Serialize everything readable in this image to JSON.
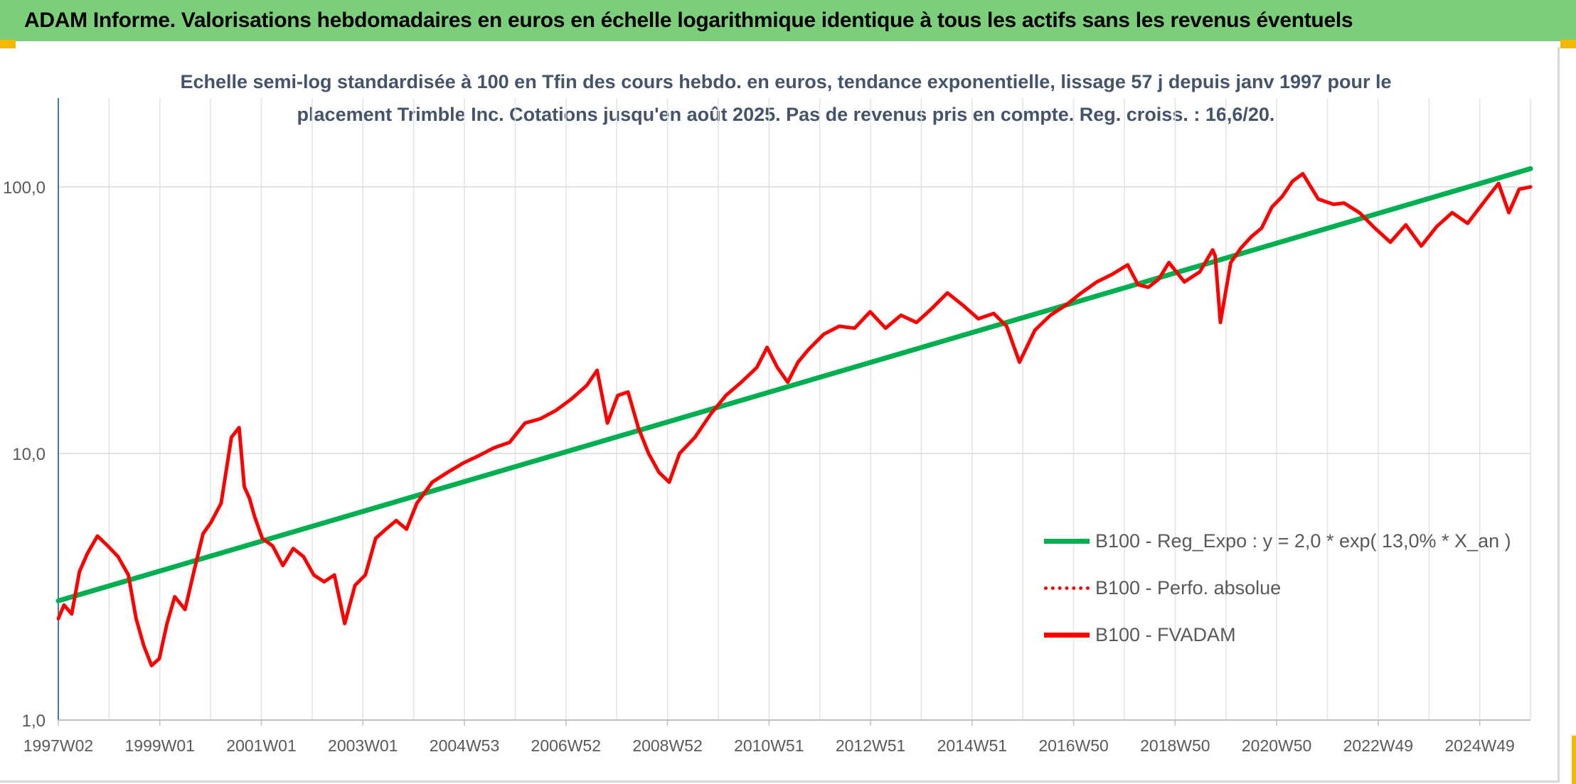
{
  "banner": {
    "title": "ADAM Informe. Valorisations hebdomadaires en euros en échelle logarithmique identique à tous les actifs sans les revenus éventuels"
  },
  "colors": {
    "banner": "#7ccf7a",
    "trend": "#00b050",
    "price": "#ff0000",
    "title_text": "#44546a",
    "accent": "#f5b800"
  },
  "chart_data": {
    "type": "line",
    "title": "Echelle semi-log standardisée à 100 en Tfin des cours hebdo. en euros, tendance exponentielle, lissage 57 j depuis janv 1997 pour le placement Trimble Inc. Cotations jusqu'en août 2025. Pas de revenus pris en compte. Reg. croiss. : 16,6/20.",
    "y_scale": "log",
    "ylim": [
      1,
      200
    ],
    "y_ticks": [
      "1,0",
      "10,0",
      "100,0"
    ],
    "x_range": [
      1997.04,
      2025.62
    ],
    "x_ticks": [
      "1997W02",
      "1999W01",
      "2001W01",
      "2003W01",
      "2004W53",
      "2006W52",
      "2008W52",
      "2010W51",
      "2012W51",
      "2014W51",
      "2016W50",
      "2018W50",
      "2020W50",
      "2022W49",
      "2024W49"
    ],
    "grid": true,
    "legend_position": "bottom-right",
    "series": [
      {
        "name": "B100 - Reg_Expo : y = 2,0 * exp( 13,0% *  X_an )",
        "style": "solid",
        "color": "#00b050",
        "x": [
          1997.04,
          2025.62
        ],
        "values": [
          2.8,
          117
        ]
      },
      {
        "name": "B100 - Perfo. absolue",
        "style": "dotted",
        "color": "#ff0000",
        "x": [],
        "values": []
      },
      {
        "name": "B100 - FVADAM",
        "style": "solid",
        "color": "#ff0000",
        "x": [
          1997.04,
          1997.15,
          1997.3,
          1997.45,
          1997.6,
          1997.8,
          1998.0,
          1998.2,
          1998.4,
          1998.55,
          1998.7,
          1998.85,
          1999.0,
          1999.15,
          1999.3,
          1999.5,
          1999.7,
          1999.85,
          2000.0,
          2000.2,
          2000.4,
          2000.55,
          2000.65,
          2000.75,
          2000.85,
          2001.0,
          2001.2,
          2001.4,
          2001.6,
          2001.8,
          2002.0,
          2002.2,
          2002.4,
          2002.6,
          2002.8,
          2003.0,
          2003.2,
          2003.4,
          2003.6,
          2003.8,
          2004.0,
          2004.3,
          2004.6,
          2004.9,
          2005.2,
          2005.5,
          2005.8,
          2006.1,
          2006.4,
          2006.7,
          2007.0,
          2007.3,
          2007.5,
          2007.7,
          2007.9,
          2008.1,
          2008.3,
          2008.5,
          2008.7,
          2008.9,
          2009.1,
          2009.4,
          2009.7,
          2010.0,
          2010.3,
          2010.6,
          2010.8,
          2011.0,
          2011.2,
          2011.4,
          2011.6,
          2011.9,
          2012.2,
          2012.5,
          2012.8,
          2013.1,
          2013.4,
          2013.7,
          2014.0,
          2014.3,
          2014.6,
          2014.9,
          2015.2,
          2015.45,
          2015.7,
          2016.0,
          2016.3,
          2016.6,
          2016.9,
          2017.2,
          2017.5,
          2017.8,
          2018.0,
          2018.2,
          2018.4,
          2018.6,
          2018.9,
          2019.2,
          2019.45,
          2019.5,
          2019.6,
          2019.8,
          2020.0,
          2020.2,
          2020.4,
          2020.6,
          2020.8,
          2021.0,
          2021.2,
          2021.5,
          2021.8,
          2022.0,
          2022.3,
          2022.6,
          2022.9,
          2023.2,
          2023.5,
          2023.8,
          2024.1,
          2024.4,
          2024.6,
          2024.8,
          2025.0,
          2025.2,
          2025.4,
          2025.62
        ],
        "values": [
          2.4,
          2.7,
          2.5,
          3.6,
          4.2,
          4.9,
          4.5,
          4.1,
          3.5,
          2.4,
          1.9,
          1.6,
          1.7,
          2.3,
          2.9,
          2.6,
          3.8,
          5.0,
          5.5,
          6.5,
          11.5,
          12.5,
          7.5,
          6.8,
          5.8,
          4.8,
          4.5,
          3.8,
          4.4,
          4.1,
          3.5,
          3.3,
          3.5,
          2.3,
          3.2,
          3.5,
          4.8,
          5.2,
          5.6,
          5.2,
          6.5,
          7.8,
          8.5,
          9.2,
          9.8,
          10.5,
          11.0,
          13.0,
          13.5,
          14.5,
          16.0,
          18.0,
          20.5,
          13.0,
          16.5,
          17.0,
          12.5,
          10.0,
          8.5,
          7.8,
          10.0,
          11.5,
          14.0,
          16.5,
          18.5,
          21.0,
          25.0,
          21.0,
          18.5,
          22.0,
          24.5,
          28.0,
          30.0,
          29.5,
          34.0,
          29.5,
          33.0,
          31.0,
          35.0,
          40.0,
          36.0,
          32.0,
          33.5,
          30.0,
          22.0,
          29.0,
          33.0,
          36.0,
          40.0,
          44.0,
          47.0,
          51.0,
          43.0,
          42.0,
          45.0,
          52.0,
          44.0,
          48.0,
          58.0,
          55.0,
          31.0,
          52.0,
          59.0,
          65.0,
          70.0,
          84.0,
          92.0,
          105.0,
          112.0,
          90.0,
          86.0,
          87.0,
          80.0,
          70.0,
          62.0,
          72.0,
          60.0,
          71.0,
          80.0,
          73.0,
          82.0,
          92.0,
          103.0,
          80.0,
          98.0,
          100.0
        ]
      }
    ]
  }
}
